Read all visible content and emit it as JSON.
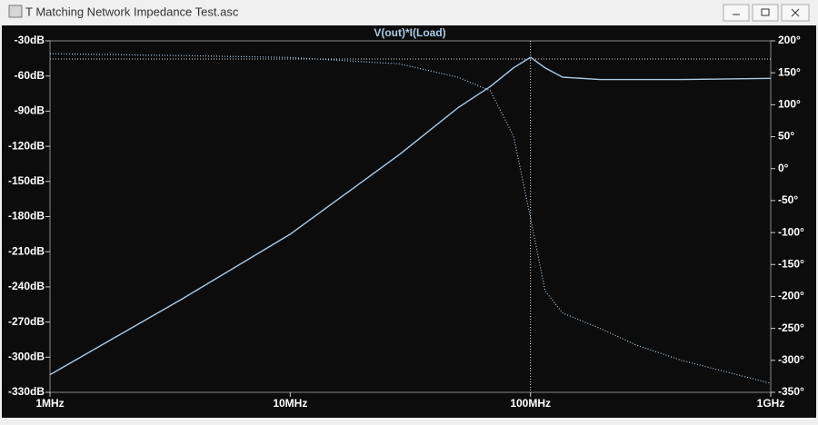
{
  "window_title": "T Matching Network Impedance Test.asc",
  "chart_data": {
    "type": "line",
    "title": "V(out)*I(Load)",
    "xscale": "log",
    "x": [
      1000000,
      3500000,
      10000000,
      28500000,
      50000000,
      68000000,
      85000000,
      100000000,
      115000000,
      136000000,
      195000000,
      275000000,
      425000000,
      1000000000
    ],
    "series": [
      {
        "color": "#a9cbe8",
        "style": "solid",
        "values": [
          -315,
          -251,
          -195,
          -127,
          -87,
          -69,
          -53,
          -44,
          -53,
          -61,
          -63,
          -63,
          -63,
          -62
        ]
      },
      {
        "color": "#a9cbe8",
        "style": "dotted",
        "axis": "y2",
        "values": [
          180,
          177,
          174,
          164,
          143,
          122,
          51,
          -77,
          -191,
          -226,
          -250,
          -276,
          -300,
          -336
        ]
      }
    ],
    "xlim": [
      1000000,
      1000000000
    ],
    "xticks": [
      {
        "value": 1000000,
        "label": "1MHz"
      },
      {
        "value": 10000000,
        "label": "10MHz"
      },
      {
        "value": 100000000,
        "label": "100MHz"
      },
      {
        "value": 1000000000,
        "label": "1GHz"
      }
    ],
    "ylim": [
      -330,
      -30
    ],
    "yticks": [
      {
        "value": -30,
        "label": "-30dB"
      },
      {
        "value": -60,
        "label": "-60dB"
      },
      {
        "value": -90,
        "label": "-90dB"
      },
      {
        "value": -120,
        "label": "-120dB"
      },
      {
        "value": -150,
        "label": "-150dB"
      },
      {
        "value": -180,
        "label": "-180dB"
      },
      {
        "value": -210,
        "label": "-210dB"
      },
      {
        "value": -240,
        "label": "-240dB"
      },
      {
        "value": -270,
        "label": "-270dB"
      },
      {
        "value": -300,
        "label": "-300dB"
      },
      {
        "value": -330,
        "label": "-330dB"
      }
    ],
    "y2lim": [
      -350,
      200
    ],
    "y2ticks": [
      {
        "value": 200,
        "label": "200°"
      },
      {
        "value": 150,
        "label": "150°"
      },
      {
        "value": 100,
        "label": "100°"
      },
      {
        "value": 50,
        "label": "50°"
      },
      {
        "value": 0,
        "label": "0°"
      },
      {
        "value": -50,
        "label": "-50°"
      },
      {
        "value": -100,
        "label": "-100°"
      },
      {
        "value": -150,
        "label": "-150°"
      },
      {
        "value": -200,
        "label": "-200°"
      },
      {
        "value": -250,
        "label": "-250°"
      },
      {
        "value": -300,
        "label": "-300°"
      },
      {
        "value": -350,
        "label": "-350°"
      }
    ]
  }
}
